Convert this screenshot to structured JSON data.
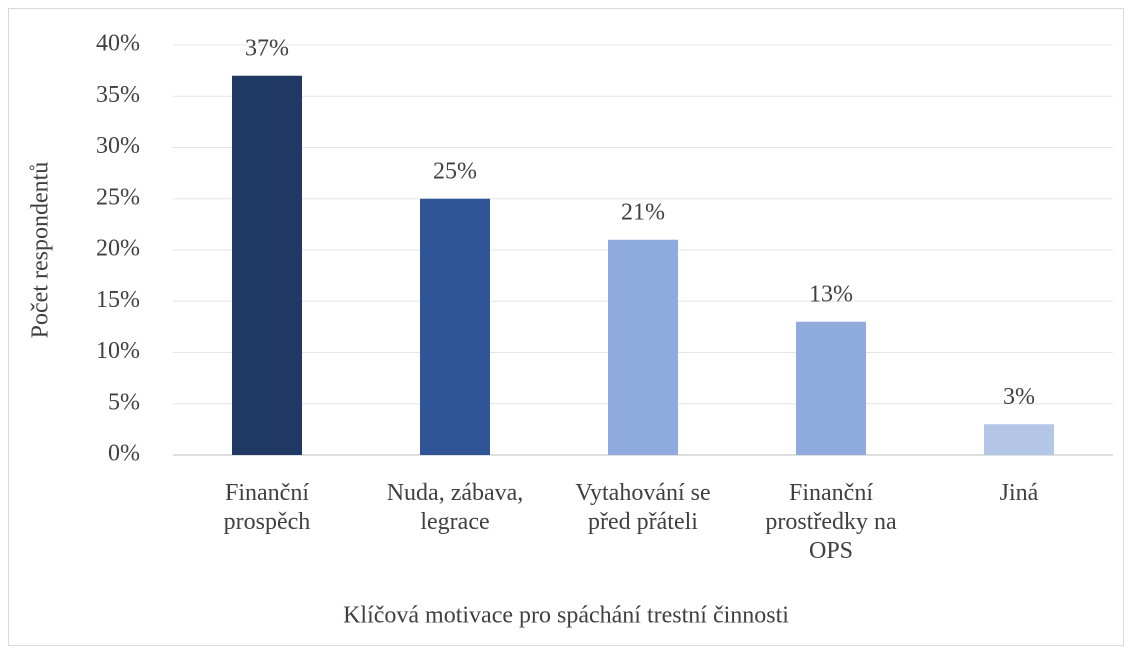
{
  "chart_data": {
    "type": "bar",
    "x_label": "Klíčová motivace pro spáchání trestní činnosti",
    "y_label": "Počet respondentů",
    "categories": [
      "Finanční prospěch",
      "Nuda, zábava, legrace",
      "Vytahování se před přáteli",
      "Finanční prostředky na OPS",
      "Jiná"
    ],
    "values": [
      37,
      25,
      21,
      13,
      3
    ],
    "value_labels": [
      "37%",
      "25%",
      "21%",
      "13%",
      "3%"
    ],
    "colors": [
      "#203864",
      "#2f5597",
      "#8faadc",
      "#8faadc",
      "#b4c7e7"
    ],
    "ylim": [
      0,
      40
    ],
    "yticks": [
      {
        "value": 0,
        "label": "0%"
      },
      {
        "value": 5,
        "label": "5%"
      },
      {
        "value": 10,
        "label": "10%"
      },
      {
        "value": 15,
        "label": "15%"
      },
      {
        "value": 20,
        "label": "20%"
      },
      {
        "value": 25,
        "label": "25%"
      },
      {
        "value": 30,
        "label": "30%"
      },
      {
        "value": 35,
        "label": "35%"
      },
      {
        "value": 40,
        "label": "40%"
      }
    ],
    "grid": true
  }
}
